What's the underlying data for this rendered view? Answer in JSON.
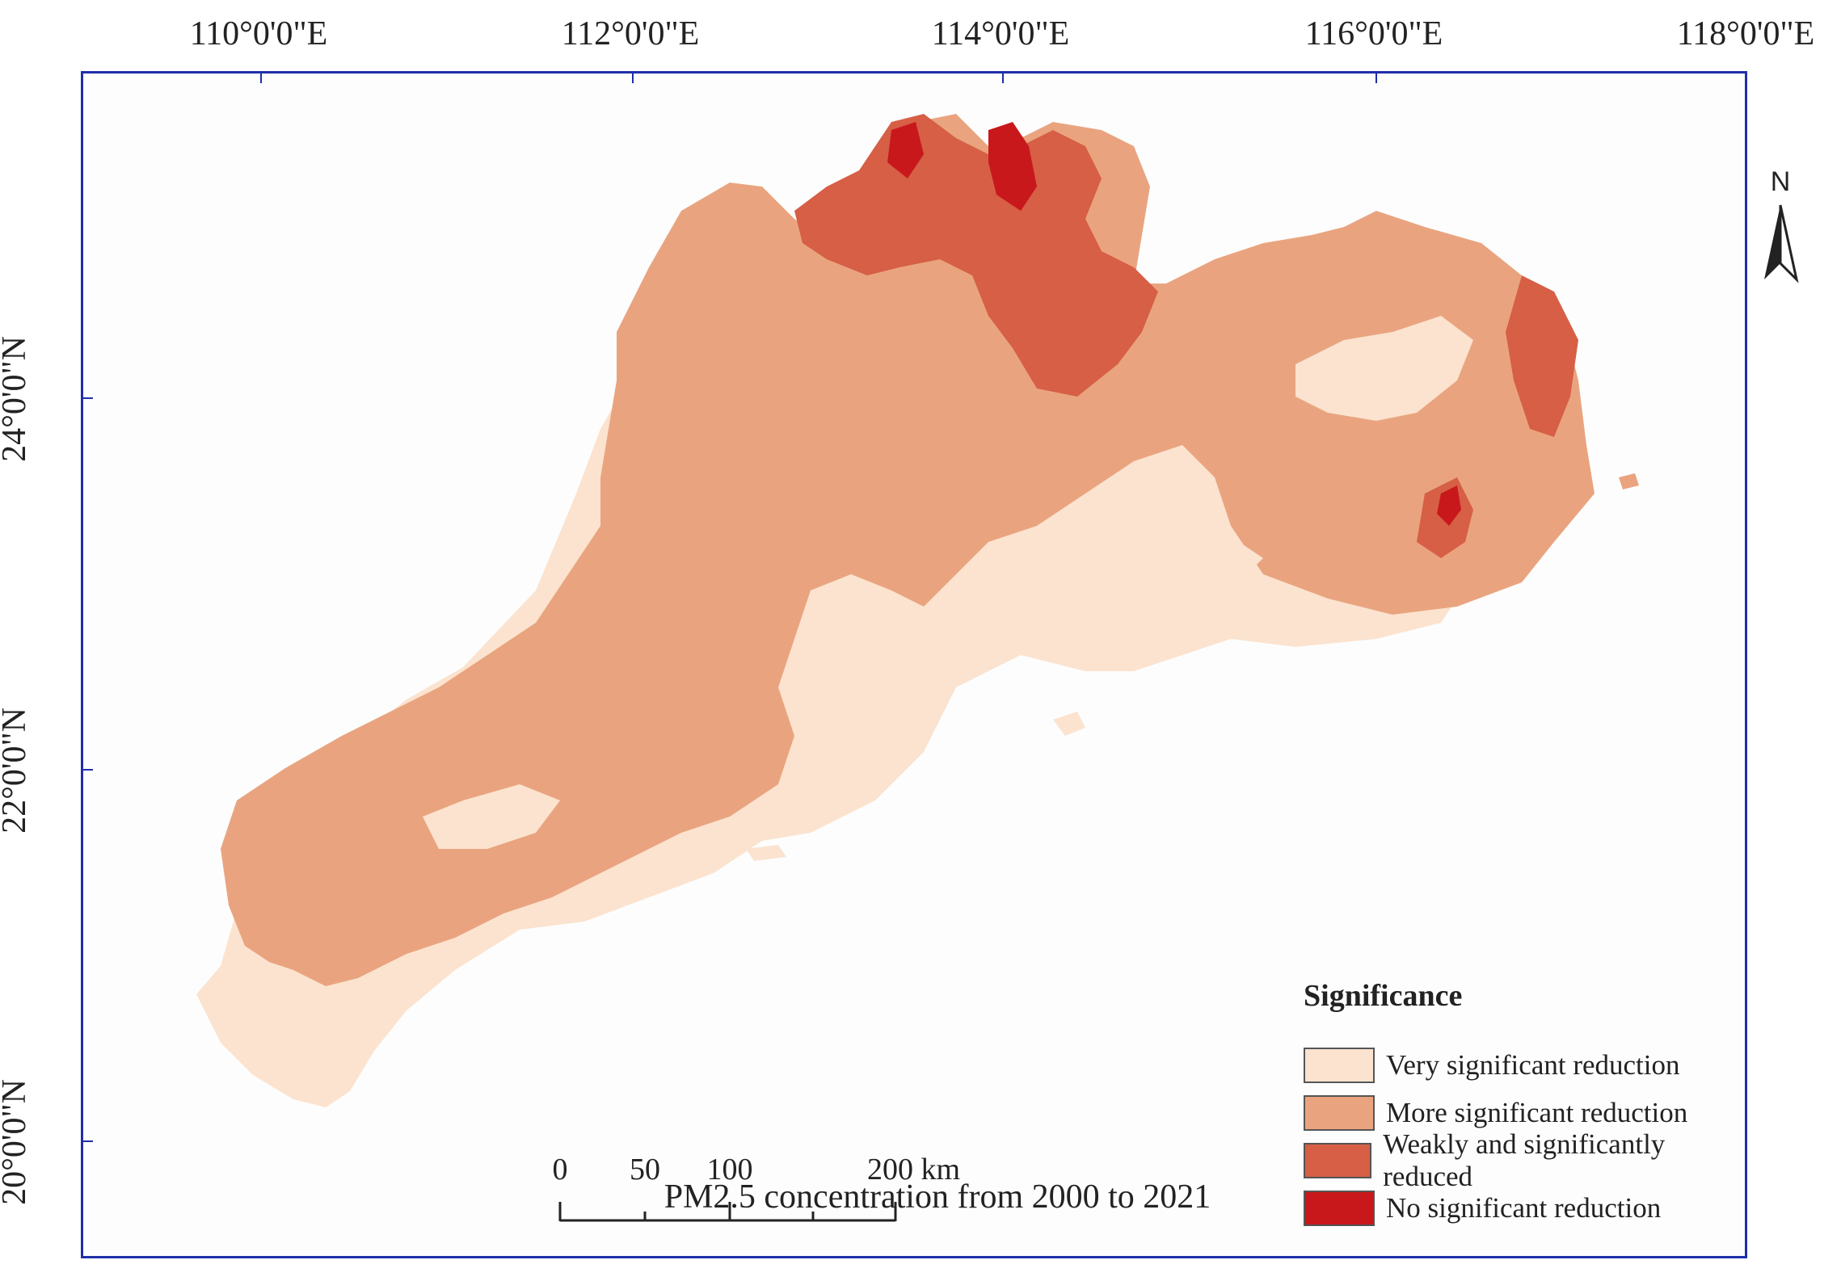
{
  "map": {
    "top_labels": [
      "110°0'0\"E",
      "112°0'0\"E",
      "114°0'0\"E",
      "116°0'0\"E",
      "118°0'0\"E"
    ],
    "left_labels": [
      "24°0'0\"N",
      "22°0'0\"N",
      "20°0'0\"N"
    ],
    "caption": "PM2.5 concentration from 2000 to 2021",
    "north_label": "N"
  },
  "legend": {
    "title": "Significance",
    "items": [
      {
        "label": "Very significant reduction",
        "color": "#fbe3cf"
      },
      {
        "label": "More significant reduction",
        "color": "#e9a47f"
      },
      {
        "label": "Weakly and significantly reduced",
        "color": "#d65f46"
      },
      {
        "label": "No significant reduction",
        "color": "#c8181b"
      }
    ]
  },
  "scale_bar": {
    "ticks": [
      "0",
      "50",
      "100",
      "200 km"
    ]
  },
  "colors": {
    "frame": "#1f2fa8",
    "very": "#fbe3cf",
    "more": "#e9a47f",
    "weak": "#d65f46",
    "none": "#c8181b"
  }
}
